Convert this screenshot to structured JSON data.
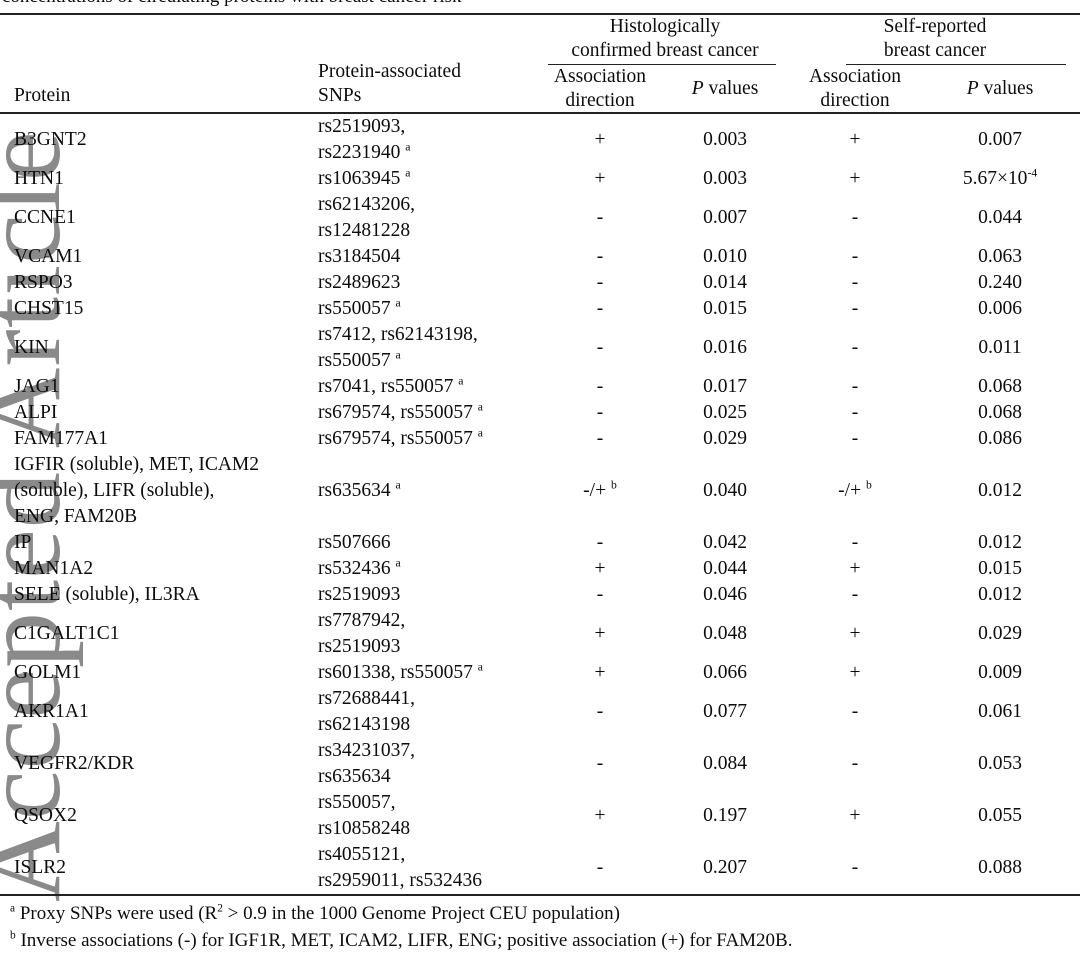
{
  "watermark": "Accepted Article",
  "caption_clipped": "concentrations of circulating proteins with breast cancer risk",
  "header": {
    "protein_label": "Protein",
    "snps_label_lines": [
      "Protein-associated",
      "SNPs"
    ],
    "group1_title_lines": [
      "Histologically",
      "confirmed breast cancer"
    ],
    "group2_title_lines": [
      "Self-reported",
      "breast cancer"
    ],
    "direction_label_lines": [
      "Association",
      "direction"
    ],
    "p_label_italic": "P",
    "p_label_rest": " values"
  },
  "rows": [
    {
      "protein": [
        "B3GNT2"
      ],
      "snps": [
        "rs2519093,",
        "rs2231940 ^{a}"
      ],
      "hist_dir": "+",
      "hist_p": "0.003",
      "self_dir": "+",
      "self_p": "0.007"
    },
    {
      "protein": [
        "HTN1"
      ],
      "snps": [
        "rs1063945 ^{a}"
      ],
      "hist_dir": "+",
      "hist_p": "0.003",
      "self_dir": "+",
      "self_p": "5.67×10^{-4}"
    },
    {
      "protein": [
        "CCNE1"
      ],
      "snps": [
        "rs62143206,",
        "rs12481228"
      ],
      "hist_dir": "-",
      "hist_p": "0.007",
      "self_dir": "-",
      "self_p": "0.044"
    },
    {
      "protein": [
        "VCAM1"
      ],
      "snps": [
        "rs3184504"
      ],
      "hist_dir": "-",
      "hist_p": "0.010",
      "self_dir": "-",
      "self_p": "0.063"
    },
    {
      "protein": [
        "RSPO3"
      ],
      "snps": [
        "rs2489623"
      ],
      "hist_dir": "-",
      "hist_p": "0.014",
      "self_dir": "-",
      "self_p": "0.240"
    },
    {
      "protein": [
        "CHST15"
      ],
      "snps": [
        "rs550057 ^{a}"
      ],
      "hist_dir": "-",
      "hist_p": "0.015",
      "self_dir": "-",
      "self_p": "0.006"
    },
    {
      "protein": [
        "KIN"
      ],
      "snps": [
        "rs7412, rs62143198,",
        "rs550057 ^{a}"
      ],
      "hist_dir": "-",
      "hist_p": "0.016",
      "self_dir": "-",
      "self_p": "0.011"
    },
    {
      "protein": [
        "JAG1"
      ],
      "snps": [
        "rs7041, rs550057 ^{a}"
      ],
      "hist_dir": "-",
      "hist_p": "0.017",
      "self_dir": "-",
      "self_p": "0.068"
    },
    {
      "protein": [
        "ALPI"
      ],
      "snps": [
        "rs679574, rs550057 ^{a}"
      ],
      "hist_dir": "-",
      "hist_p": "0.025",
      "self_dir": "-",
      "self_p": "0.068"
    },
    {
      "protein": [
        "FAM177A1"
      ],
      "snps": [
        "rs679574, rs550057 ^{a}"
      ],
      "hist_dir": "-",
      "hist_p": "0.029",
      "self_dir": "-",
      "self_p": "0.086"
    },
    {
      "protein": [
        "IGFIR (soluble), MET, ICAM2",
        "(soluble), LIFR (soluble),",
        "ENG, FAM20B"
      ],
      "snps": [
        "rs635634 ^{a}"
      ],
      "hist_dir": "-/+ ^{b}",
      "hist_p": "0.040",
      "self_dir": "-/+ ^{b}",
      "self_p": "0.012"
    },
    {
      "protein": [
        "IP"
      ],
      "snps": [
        "rs507666"
      ],
      "hist_dir": "-",
      "hist_p": "0.042",
      "self_dir": "-",
      "self_p": "0.012"
    },
    {
      "protein": [
        "MAN1A2"
      ],
      "snps": [
        "rs532436 ^{a}"
      ],
      "hist_dir": "+",
      "hist_p": "0.044",
      "self_dir": "+",
      "self_p": "0.015"
    },
    {
      "protein": [
        "SELE (soluble), IL3RA"
      ],
      "snps": [
        "rs2519093"
      ],
      "hist_dir": "-",
      "hist_p": "0.046",
      "self_dir": "-",
      "self_p": "0.012"
    },
    {
      "protein": [
        "C1GALT1C1"
      ],
      "snps": [
        "rs7787942,",
        "rs2519093"
      ],
      "hist_dir": "+",
      "hist_p": "0.048",
      "self_dir": "+",
      "self_p": "0.029"
    },
    {
      "protein": [
        "GOLM1"
      ],
      "snps": [
        "rs601338, rs550057 ^{a}"
      ],
      "hist_dir": "+",
      "hist_p": "0.066",
      "self_dir": "+",
      "self_p": "0.009"
    },
    {
      "protein": [
        "AKR1A1"
      ],
      "snps": [
        "rs72688441,",
        "rs62143198"
      ],
      "hist_dir": "-",
      "hist_p": "0.077",
      "self_dir": "-",
      "self_p": "0.061"
    },
    {
      "protein": [
        "VEGFR2/KDR"
      ],
      "snps": [
        "rs34231037,",
        "rs635634"
      ],
      "hist_dir": "-",
      "hist_p": "0.084",
      "self_dir": "-",
      "self_p": "0.053"
    },
    {
      "protein": [
        "QSOX2"
      ],
      "snps": [
        "rs550057,",
        "rs10858248"
      ],
      "hist_dir": "+",
      "hist_p": "0.197",
      "self_dir": "+",
      "self_p": "0.055"
    },
    {
      "protein": [
        "ISLR2"
      ],
      "snps": [
        "rs4055121,",
        "rs2959011, rs532436"
      ],
      "hist_dir": "-",
      "hist_p": "0.207",
      "self_dir": "-",
      "self_p": "0.088"
    }
  ],
  "footnotes": [
    {
      "marker": "a",
      "text": "Proxy SNPs were used (R^{2} > 0.9 in the 1000 Genome Project CEU population)"
    },
    {
      "marker": "b",
      "text": "Inverse associations (-) for  IGF1R, MET, ICAM2, LIFR, ENG; positive association (+) for FAM20B."
    }
  ]
}
